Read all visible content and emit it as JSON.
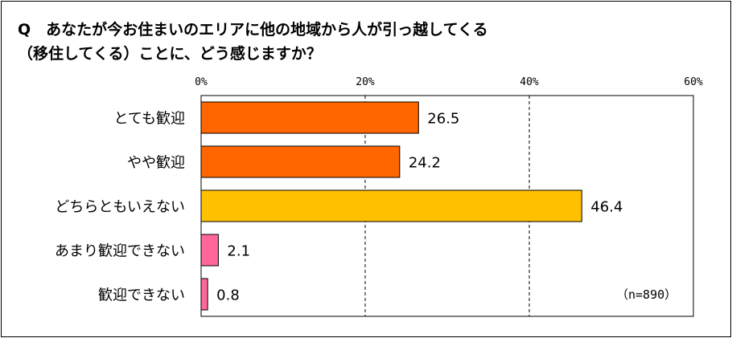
{
  "title": {
    "line1": "Q　あなたが今お住まいのエリアに他の地域から人が引っ越してくる",
    "line2": "（移住してくる）ことに、どう感じますか？"
  },
  "note": "（n=890）",
  "chart_data": {
    "type": "bar",
    "orientation": "horizontal",
    "categories": [
      "とても歓迎",
      "やや歓迎",
      "どちらともいえない",
      "あまり歓迎できない",
      "歓迎できない"
    ],
    "values": [
      26.5,
      24.2,
      46.4,
      2.1,
      0.8
    ],
    "value_labels": [
      "26.5",
      "24.2",
      "46.4",
      "2.1",
      "0.8"
    ],
    "bar_colors": [
      "#ff6600",
      "#ff6600",
      "#ffc000",
      "#ff6699",
      "#ff6699"
    ],
    "xlim": [
      0,
      60
    ],
    "x_ticks": [
      0,
      20,
      40,
      60
    ],
    "x_tick_labels": [
      "0%",
      "20%",
      "40%",
      "60%"
    ],
    "grid": "vertical dashed",
    "title": "",
    "xlabel": "",
    "ylabel": ""
  }
}
